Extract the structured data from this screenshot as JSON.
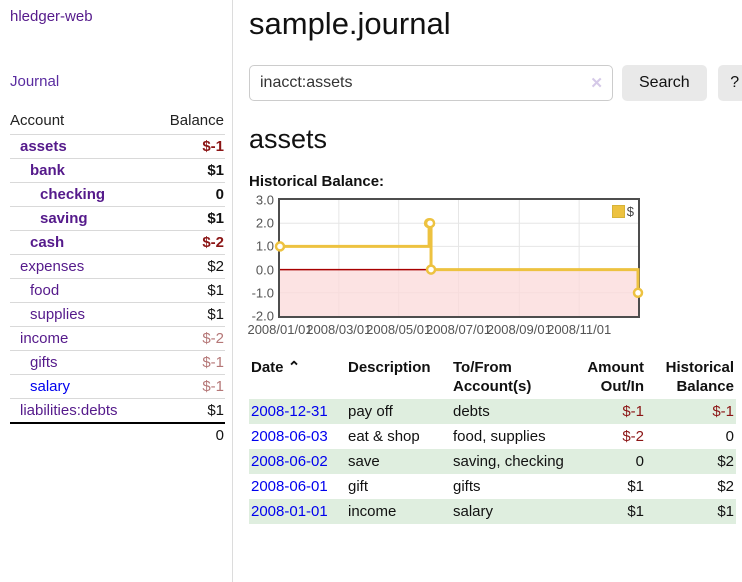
{
  "app": {
    "brand": "hledger-web",
    "nav": {
      "journal": "Journal"
    }
  },
  "sidebar": {
    "header": {
      "account": "Account",
      "balance": "Balance"
    },
    "accounts": [
      {
        "name": "assets",
        "balance": "$-1"
      },
      {
        "name": "bank",
        "balance": "$1"
      },
      {
        "name": "checking",
        "balance": "0"
      },
      {
        "name": "saving",
        "balance": "$1"
      },
      {
        "name": "cash",
        "balance": "$-2"
      },
      {
        "name": "expenses",
        "balance": "$2"
      },
      {
        "name": "food",
        "balance": "$1"
      },
      {
        "name": "supplies",
        "balance": "$1"
      },
      {
        "name": "income",
        "balance": "$-2"
      },
      {
        "name": "gifts",
        "balance": "$-1"
      },
      {
        "name": "salary",
        "balance": "$-1"
      },
      {
        "name": "liabilities:debts",
        "balance": "$1"
      }
    ],
    "total": "0"
  },
  "main": {
    "title": "sample.journal",
    "search": {
      "value": "inacct:assets",
      "clear_icon": "✕",
      "button_label": "Search",
      "help_label": "?"
    },
    "account_heading": "assets",
    "chart_label": "Historical Balance:"
  },
  "chart_data": {
    "type": "line",
    "title": "Historical Balance",
    "style": "step-after",
    "legend": [
      {
        "name": "$",
        "color": "#edc240"
      }
    ],
    "legend_position": "top-right",
    "grid": true,
    "x_range": [
      "2008-01-01",
      "2008-12-31"
    ],
    "ylim": [
      -2.0,
      3.0
    ],
    "yticks": [
      "3.0",
      "2.0",
      "1.0",
      "0.0",
      "-1.0",
      "-2.0"
    ],
    "xticks": [
      "2008/01/01",
      "2008/03/01",
      "2008/05/01",
      "2008/07/01",
      "2008/09/01",
      "2008/11/01"
    ],
    "points": [
      {
        "date": "2008-01-01",
        "value": 1
      },
      {
        "date": "2008-06-01",
        "value": 2
      },
      {
        "date": "2008-06-02",
        "value": 2
      },
      {
        "date": "2008-06-03",
        "value": 0
      },
      {
        "date": "2008-12-31",
        "value": -1
      }
    ],
    "zero_line_color": "#a80000",
    "negative_region_fill": "#fbdada"
  },
  "register": {
    "headers": {
      "date": "Date",
      "sort_icon": "⌃",
      "description": "Description",
      "accounts": "To/From Account(s)",
      "amount": "Amount Out/In",
      "balance": "Historical Balance"
    },
    "rows": [
      {
        "date": "2008-12-31",
        "description": "pay off",
        "accounts": "debts",
        "amount": "$-1",
        "balance": "$-1"
      },
      {
        "date": "2008-06-03",
        "description": "eat & shop",
        "accounts": "food, supplies",
        "amount": "$-2",
        "balance": "0"
      },
      {
        "date": "2008-06-02",
        "description": "save",
        "accounts": "saving, checking",
        "amount": "0",
        "balance": "$2"
      },
      {
        "date": "2008-06-01",
        "description": "gift",
        "accounts": "gifts",
        "amount": "$1",
        "balance": "$2"
      },
      {
        "date": "2008-01-01",
        "description": "income",
        "accounts": "salary",
        "amount": "$1",
        "balance": "$1"
      }
    ]
  },
  "colors": {
    "link_purple": "#551a8b",
    "link_blue": "#0000ee",
    "negative_strong": "#8b1515",
    "negative_soft": "#b57777",
    "row_green": "#dfeedf",
    "chart_series_gold": "#edc240",
    "chart_negative_pink": "#fbdada",
    "chart_zero_line": "#a80000"
  }
}
